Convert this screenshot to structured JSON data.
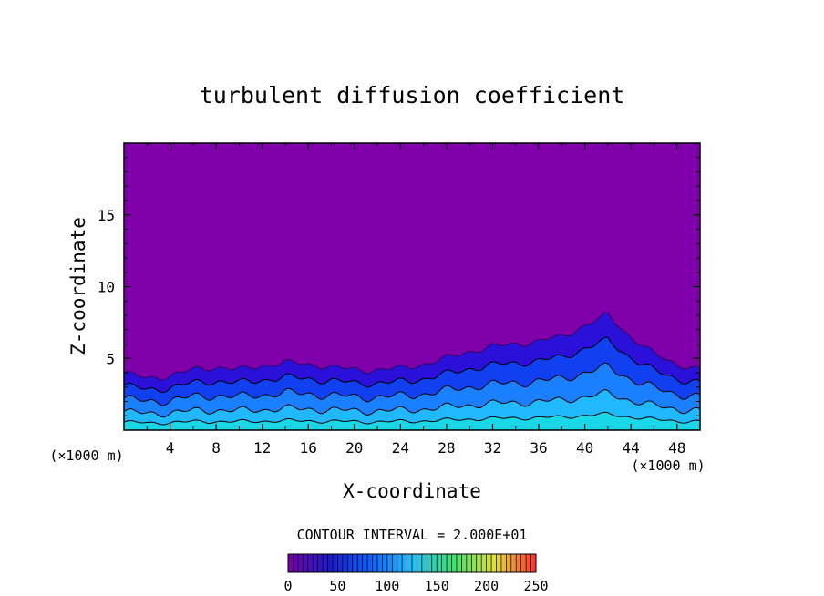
{
  "chart_data": {
    "type": "heatmap",
    "title": "turbulent diffusion coefficient",
    "xlabel": "X-coordinate",
    "ylabel": "Z-coordinate",
    "x_unit": "(×1000 m)",
    "y_unit": "(×1000 m)",
    "xlim": [
      0,
      50
    ],
    "ylim": [
      0,
      20
    ],
    "x_ticks": [
      4,
      8,
      12,
      16,
      20,
      24,
      28,
      32,
      36,
      40,
      44,
      48
    ],
    "y_ticks": [
      5,
      10,
      15
    ],
    "contour_interval_text": "CONTOUR INTERVAL = 2.000E+01",
    "colorbar": {
      "min": 0,
      "max": 250,
      "ticks": [
        0,
        50,
        100,
        150,
        200,
        250
      ],
      "colors": [
        "#7a00a8",
        "#1a1acc",
        "#1060ff",
        "#20c0ff",
        "#40e070",
        "#e0e040",
        "#ff3030"
      ]
    },
    "background_color": "#7f00aa",
    "turbulent_layer_top_km": [
      [
        0,
        4.0
      ],
      [
        2,
        3.6
      ],
      [
        4,
        3.8
      ],
      [
        6,
        4.2
      ],
      [
        8,
        4.4
      ],
      [
        10,
        4.2
      ],
      [
        12,
        4.5
      ],
      [
        14,
        4.7
      ],
      [
        16,
        4.6
      ],
      [
        18,
        4.4
      ],
      [
        20,
        4.2
      ],
      [
        22,
        4.2
      ],
      [
        24,
        4.3
      ],
      [
        26,
        4.6
      ],
      [
        28,
        5.0
      ],
      [
        30,
        5.5
      ],
      [
        32,
        5.8
      ],
      [
        34,
        6.0
      ],
      [
        36,
        6.2
      ],
      [
        38,
        6.5
      ],
      [
        40,
        7.3
      ],
      [
        42,
        8.0
      ],
      [
        44,
        6.5
      ],
      [
        46,
        5.3
      ],
      [
        48,
        4.6
      ],
      [
        50,
        4.2
      ]
    ]
  }
}
